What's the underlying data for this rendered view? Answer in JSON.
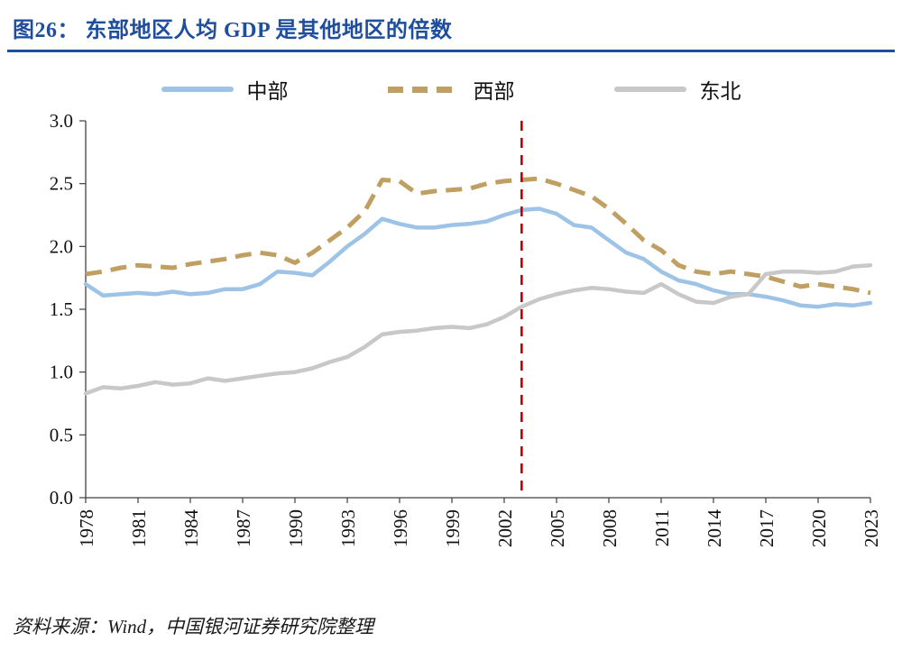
{
  "header": {
    "title": "图26： 东部地区人均 GDP 是其他地区的倍数"
  },
  "footer": {
    "source": "资料来源：Wind，中国银河证券研究院整理"
  },
  "colors": {
    "title": "#1F4E9C",
    "rule": "#1F4E9C",
    "central": "#9DC3E6",
    "west": "#C0A062",
    "northeast": "#C8C8C8",
    "marker_line": "#C00000",
    "axis": "#404040",
    "tick_text": "#111111"
  },
  "chart_data": {
    "type": "line",
    "title": "东部地区人均GDP是其他地区的倍数",
    "xlabel": "",
    "ylabel": "",
    "ylim": [
      0.0,
      3.0
    ],
    "y_ticks": [
      0.0,
      0.5,
      1.0,
      1.5,
      2.0,
      2.5,
      3.0
    ],
    "grid": false,
    "legend_position": "top",
    "x_label_ticks": [
      1978,
      1981,
      1984,
      1987,
      1990,
      1993,
      1996,
      1999,
      2002,
      2005,
      2008,
      2011,
      2014,
      2017,
      2020,
      2023
    ],
    "x": [
      1978,
      1979,
      1980,
      1981,
      1982,
      1983,
      1984,
      1985,
      1986,
      1987,
      1988,
      1989,
      1990,
      1991,
      1992,
      1993,
      1994,
      1995,
      1996,
      1997,
      1998,
      1999,
      2000,
      2001,
      2002,
      2003,
      2004,
      2005,
      2006,
      2007,
      2008,
      2009,
      2010,
      2011,
      2012,
      2013,
      2014,
      2015,
      2016,
      2017,
      2018,
      2019,
      2020,
      2021,
      2022,
      2023
    ],
    "series": [
      {
        "name": "中部",
        "style": "solid",
        "color_key": "central",
        "values": [
          1.7,
          1.61,
          1.62,
          1.63,
          1.62,
          1.64,
          1.62,
          1.63,
          1.66,
          1.66,
          1.7,
          1.8,
          1.79,
          1.77,
          1.88,
          2.0,
          2.1,
          2.22,
          2.18,
          2.15,
          2.15,
          2.17,
          2.18,
          2.2,
          2.25,
          2.29,
          2.3,
          2.26,
          2.17,
          2.15,
          2.05,
          1.95,
          1.9,
          1.8,
          1.73,
          1.7,
          1.65,
          1.62,
          1.62,
          1.6,
          1.57,
          1.53,
          1.52,
          1.54,
          1.53,
          1.55
        ]
      },
      {
        "name": "西部",
        "style": "dashed",
        "color_key": "west",
        "values": [
          1.78,
          1.8,
          1.83,
          1.85,
          1.84,
          1.83,
          1.86,
          1.88,
          1.9,
          1.93,
          1.95,
          1.93,
          1.87,
          1.95,
          2.05,
          2.15,
          2.28,
          2.53,
          2.52,
          2.42,
          2.44,
          2.45,
          2.46,
          2.5,
          2.52,
          2.53,
          2.54,
          2.5,
          2.45,
          2.4,
          2.3,
          2.18,
          2.05,
          1.97,
          1.85,
          1.8,
          1.78,
          1.8,
          1.78,
          1.76,
          1.72,
          1.68,
          1.7,
          1.68,
          1.66,
          1.63
        ]
      },
      {
        "name": "东北",
        "style": "solid",
        "color_key": "northeast",
        "values": [
          0.83,
          0.88,
          0.87,
          0.89,
          0.92,
          0.9,
          0.91,
          0.95,
          0.93,
          0.95,
          0.97,
          0.99,
          1.0,
          1.03,
          1.08,
          1.12,
          1.2,
          1.3,
          1.32,
          1.33,
          1.35,
          1.36,
          1.35,
          1.38,
          1.44,
          1.52,
          1.58,
          1.62,
          1.65,
          1.67,
          1.66,
          1.64,
          1.63,
          1.7,
          1.62,
          1.56,
          1.55,
          1.6,
          1.62,
          1.78,
          1.8,
          1.8,
          1.79,
          1.8,
          1.84,
          1.85
        ]
      }
    ],
    "annotation": {
      "type": "vline",
      "x": 2003,
      "style": "dashed",
      "color_key": "marker_line"
    }
  }
}
